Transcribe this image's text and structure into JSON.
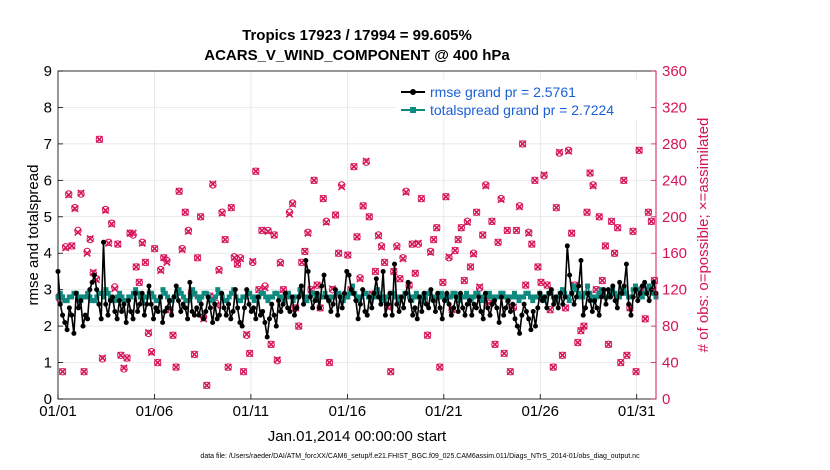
{
  "chart_data": {
    "type": "line",
    "title": "Tropics 17923 / 17994 = 99.605%",
    "subtitle": "ACARS_V_WIND_COMPONENT @ 400 hPa",
    "xlabel": "Jan.01,2014 00:00:00 start",
    "ylabel": "rmse and totalspread",
    "y2label": "# of obs: o=possible; ×=assimilated",
    "footnote": "data file: /Users/raeder/DAI/ATM_forcXX/CAM6_setup/f.e21.FHIST_BGC.f09_025.CAM6assim.011/Diags_NTrS_2014-01/obs_diag_output.nc",
    "xlim": [
      1,
      32
    ],
    "ylim": [
      0,
      9
    ],
    "y2lim": [
      0,
      360
    ],
    "x_ticks": [
      1,
      6,
      11,
      16,
      21,
      26,
      31
    ],
    "x_tick_labels": [
      "01/01",
      "01/06",
      "01/11",
      "01/16",
      "01/21",
      "01/26",
      "01/31"
    ],
    "y_ticks": [
      0,
      1,
      2,
      3,
      4,
      5,
      6,
      7,
      8,
      9
    ],
    "y2_ticks": [
      0,
      40,
      80,
      120,
      160,
      200,
      240,
      280,
      320,
      360
    ],
    "colors": {
      "rmse": "#000000",
      "spread": "#0f8a80",
      "obs": "#d6145a",
      "legend_text": "#1a5fd6"
    },
    "series": [
      {
        "name": "rmse",
        "legend": "rmse grand pr = 2.5761",
        "values": [
          3.5,
          2.6,
          2.3,
          2.1,
          1.9,
          2.5,
          2.3,
          1.8,
          2.9,
          2.5,
          2.7,
          2.0,
          2.3,
          2.2,
          3.0,
          3.2,
          3.4,
          3.0,
          2.6,
          2.2,
          4.3,
          2.6,
          2.3,
          2.7,
          2.8,
          2.4,
          2.2,
          2.7,
          2.4,
          2.6,
          2.1,
          2.7,
          2.4,
          2.2,
          2.9,
          2.4,
          2.6,
          2.9,
          2.3,
          2.6,
          3.1,
          2.6,
          2.2,
          2.5,
          2.4,
          2.8,
          2.1,
          2.4,
          2.5,
          2.7,
          2.3,
          2.8,
          3.1,
          2.7,
          2.4,
          2.6,
          2.5,
          2.2,
          3.2,
          2.4,
          2.3,
          2.5,
          2.3,
          2.6,
          2.2,
          2.4,
          2.8,
          2.5,
          2.1,
          2.6,
          2.2,
          2.3,
          2.9,
          2.5,
          2.3,
          2.6,
          2.2,
          2.4,
          3.0,
          2.5,
          2.1,
          2.0,
          2.5,
          3.0,
          2.6,
          2.4,
          2.5,
          2.2,
          2.8,
          2.3,
          2.4,
          2.1,
          1.7,
          2.2,
          2.6,
          2.3,
          2.0,
          2.7,
          2.4,
          2.6,
          2.9,
          2.5,
          2.4,
          2.8,
          2.3,
          2.5,
          2.8,
          3.1,
          2.6,
          3.8,
          3.5,
          2.8,
          2.5,
          2.7,
          2.9,
          2.5,
          3.1,
          3.4,
          2.8,
          2.7,
          2.4,
          2.6,
          3.0,
          2.3,
          2.8,
          2.5,
          2.9,
          3.5,
          3.4,
          3.0,
          2.9,
          2.7,
          2.2,
          2.6,
          3.0,
          2.4,
          2.3,
          2.8,
          2.5,
          2.9,
          3.3,
          2.8,
          2.6,
          3.5,
          2.3,
          2.6,
          2.9,
          2.3,
          3.7,
          2.6,
          2.4,
          2.8,
          2.5,
          2.9,
          3.2,
          2.7,
          2.3,
          2.5,
          2.2,
          2.8,
          2.4,
          2.9,
          2.6,
          2.5,
          3.0,
          2.7,
          2.4,
          2.9,
          2.5,
          2.2,
          2.7,
          2.9,
          2.6,
          2.3,
          2.5,
          2.8,
          2.4,
          2.9,
          2.5,
          2.3,
          2.6,
          2.7,
          2.3,
          2.6,
          2.5,
          2.8,
          2.4,
          2.2,
          2.9,
          2.5,
          2.3,
          2.6,
          2.7,
          2.5,
          2.1,
          2.8,
          2.3,
          2.5,
          2.7,
          2.4,
          2.6,
          2.2,
          2.0,
          1.8,
          2.3,
          2.6,
          2.4,
          2.2,
          1.9,
          2.4,
          2.0,
          2.5,
          2.9,
          2.7,
          2.8,
          2.5,
          2.9,
          3.0,
          2.6,
          2.8,
          2.5,
          2.9,
          2.6,
          2.8,
          4.2,
          3.4,
          2.9,
          2.6,
          2.8,
          3.1,
          3.8,
          2.3,
          2.5,
          2.9,
          2.7,
          2.4,
          2.7,
          2.5,
          2.3,
          2.8,
          3.0,
          2.6,
          3.0,
          2.8,
          3.1,
          2.7,
          2.5,
          3.2,
          2.9,
          3.1,
          3.7,
          2.6,
          2.3,
          2.8,
          3.0,
          2.7,
          2.9,
          3.1,
          3.2,
          2.9,
          2.7,
          3.0,
          3.2,
          2.9
        ]
      },
      {
        "name": "totalspread",
        "legend": "totalspread grand pr = 2.7224",
        "values": [
          2.8,
          2.9,
          2.8,
          2.7,
          2.7,
          2.8,
          2.8,
          2.9,
          2.9,
          2.8,
          2.7,
          2.8,
          2.8,
          2.9,
          2.8,
          2.7,
          2.7,
          2.8,
          2.9,
          2.9,
          2.8,
          3.0,
          2.9,
          2.8,
          2.7,
          2.7,
          2.8,
          2.9,
          2.8,
          2.7,
          2.7,
          2.8,
          2.8,
          2.9,
          3.0,
          2.9,
          2.8,
          2.7,
          2.8,
          2.8,
          2.9,
          2.9,
          2.8,
          2.7,
          2.7,
          2.8,
          3.0,
          2.9,
          2.8,
          2.7,
          2.7,
          2.8,
          2.9,
          3.0,
          2.9,
          2.8,
          2.7,
          2.7,
          2.8,
          3.0,
          2.9,
          2.8,
          2.7,
          2.8,
          2.9,
          2.9,
          2.8,
          2.7,
          2.7,
          2.8,
          3.0,
          2.9,
          2.8,
          2.7,
          2.7,
          2.8,
          2.9,
          3.0,
          2.8,
          2.7,
          2.7,
          2.8,
          2.8,
          2.9,
          2.9,
          2.8,
          2.7,
          2.8,
          2.8,
          2.9,
          2.9,
          2.8,
          2.7,
          2.8,
          2.8,
          2.9,
          2.9,
          2.8,
          2.8,
          2.7,
          2.8,
          2.9,
          2.8,
          2.7,
          2.8,
          2.8,
          3.0,
          2.9,
          2.8,
          2.7,
          2.8,
          2.9,
          2.9,
          2.8,
          2.7,
          2.8,
          2.8,
          2.9,
          2.8,
          2.7,
          2.8,
          2.8,
          2.9,
          2.9,
          2.8,
          2.7,
          2.8,
          2.8,
          2.9,
          3.1,
          2.9,
          2.8,
          2.7,
          2.8,
          2.9,
          2.9,
          2.8,
          2.7,
          2.8,
          2.8,
          3.0,
          2.9,
          2.8,
          2.7,
          2.8,
          2.8,
          2.9,
          2.9,
          2.8,
          2.7,
          2.8,
          2.8,
          2.9,
          2.9,
          2.8,
          2.7,
          2.8,
          2.9,
          2.8,
          2.8,
          2.7,
          2.8,
          2.9,
          2.9,
          2.8,
          2.7,
          2.8,
          2.8,
          2.9,
          2.8,
          2.7,
          2.8,
          2.8,
          2.9,
          2.9,
          2.8,
          2.7,
          2.8,
          2.8,
          2.9,
          2.8,
          2.7,
          2.8,
          2.9,
          2.9,
          2.8,
          2.7,
          2.8,
          2.8,
          2.9,
          2.8,
          2.7,
          2.8,
          2.8,
          2.9,
          2.9,
          2.8,
          2.7,
          2.8,
          2.8,
          2.9,
          2.8,
          2.7,
          2.8,
          2.8,
          2.9,
          2.9,
          2.8,
          2.7,
          2.8,
          2.8,
          2.9,
          2.8,
          2.7,
          2.8,
          2.9,
          2.9,
          2.8,
          2.7,
          2.8,
          2.9,
          3.0,
          2.9,
          2.8,
          2.7,
          2.9,
          3.1,
          3.0,
          2.9,
          2.8,
          2.8,
          2.9,
          3.1,
          2.9,
          2.8,
          2.7,
          2.8,
          2.9,
          3.0,
          2.9,
          2.8,
          2.8,
          2.9,
          3.0,
          2.9,
          2.8,
          2.8,
          2.9,
          3.0,
          2.9,
          2.8,
          2.8,
          3.0,
          3.1,
          3.0,
          2.9,
          2.8,
          2.9,
          3.0,
          3.1,
          3.0,
          2.9,
          2.8
        ]
      }
    ],
    "obs_possible_y2": [
      110,
      30,
      167,
      225,
      168,
      210,
      185,
      225,
      30,
      162,
      175,
      138,
      132,
      285,
      44,
      208,
      172,
      193,
      123,
      170,
      48,
      33,
      45,
      182,
      180,
      145,
      128,
      172,
      150,
      72,
      52,
      165,
      40,
      142,
      155,
      152,
      98,
      70,
      35,
      228,
      165,
      205,
      185,
      116,
      49,
      155,
      200,
      90,
      15,
      113,
      235,
      105,
      142,
      205,
      175,
      35,
      210,
      156,
      148,
      155,
      30,
      70,
      50,
      150,
      250,
      120,
      185,
      124,
      185,
      60,
      180,
      42,
      150,
      120,
      115,
      205,
      215,
      100,
      80,
      150,
      162,
      183,
      120,
      240,
      125,
      100,
      220,
      195,
      40,
      120,
      202,
      160,
      235,
      113,
      158,
      120,
      255,
      178,
      133,
      212,
      260,
      200,
      115,
      140,
      180,
      168,
      150,
      102,
      30,
      140,
      168,
      132,
      155,
      228,
      125,
      170,
      138,
      170,
      220,
      108,
      70,
      162,
      175,
      188,
      35,
      128,
      222,
      155,
      98,
      163,
      175,
      188,
      130,
      195,
      145,
      160,
      205,
      122,
      180,
      235,
      105,
      195,
      60,
      172,
      220,
      50,
      185,
      30,
      100,
      185,
      212,
      280,
      125,
      183,
      170,
      240,
      145,
      128,
      245,
      125,
      98,
      35,
      210,
      270,
      48,
      100,
      273,
      182,
      125,
      62,
      75,
      80,
      205,
      248,
      235,
      120,
      200,
      130,
      168,
      60,
      195,
      160,
      188,
      40,
      240,
      48,
      100,
      184,
      30,
      273,
      120,
      88,
      205,
      195,
      130
    ],
    "obs_assimilated_y2": [
      112,
      30,
      166,
      224,
      168,
      209,
      183,
      226,
      30,
      160,
      176,
      139,
      131,
      285,
      45,
      207,
      171,
      192,
      121,
      170,
      48,
      34,
      45,
      182,
      182,
      145,
      128,
      171,
      150,
      73,
      51,
      165,
      40,
      141,
      155,
      150,
      98,
      70,
      35,
      228,
      164,
      205,
      184,
      116,
      49,
      155,
      200,
      88,
      15,
      113,
      236,
      103,
      141,
      204,
      175,
      35,
      210,
      155,
      148,
      154,
      30,
      71,
      50,
      151,
      250,
      120,
      185,
      122,
      184,
      60,
      180,
      43,
      149,
      120,
      115,
      203,
      214,
      100,
      80,
      150,
      162,
      182,
      120,
      240,
      125,
      100,
      220,
      194,
      40,
      121,
      202,
      160,
      233,
      113,
      158,
      120,
      255,
      178,
      132,
      212,
      261,
      200,
      115,
      140,
      179,
      167,
      150,
      101,
      30,
      140,
      167,
      132,
      154,
      227,
      125,
      170,
      138,
      171,
      220,
      108,
      70,
      161,
      175,
      188,
      35,
      128,
      222,
      156,
      98,
      163,
      175,
      188,
      130,
      194,
      145,
      159,
      205,
      123,
      180,
      234,
      105,
      195,
      60,
      172,
      219,
      50,
      185,
      30,
      101,
      185,
      211,
      280,
      125,
      182,
      170,
      240,
      145,
      128,
      246,
      125,
      98,
      35,
      210,
      271,
      48,
      100,
      272,
      182,
      125,
      62,
      75,
      80,
      205,
      248,
      234,
      120,
      200,
      130,
      168,
      60,
      195,
      160,
      188,
      40,
      240,
      48,
      100,
      184,
      30,
      273,
      120,
      88,
      205,
      195,
      130
    ],
    "legend_position": "top-right"
  }
}
